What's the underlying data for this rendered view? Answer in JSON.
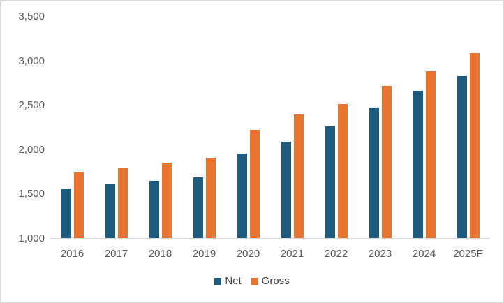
{
  "chart_data": {
    "type": "bar",
    "title": "",
    "xlabel": "",
    "ylabel": "",
    "categories": [
      "2016",
      "2017",
      "2018",
      "2019",
      "2020",
      "2021",
      "2022",
      "2023",
      "2024",
      "2025F"
    ],
    "series": [
      {
        "name": "Net",
        "color": "#1d5c7f",
        "values": [
          1570,
          1610,
          1650,
          1690,
          1960,
          2090,
          2270,
          2480,
          2670,
          2830
        ]
      },
      {
        "name": "Gross",
        "color": "#e8742f",
        "values": [
          1750,
          1800,
          1860,
          1910,
          2230,
          2400,
          2520,
          2720,
          2890,
          3090
        ]
      }
    ],
    "ylim": [
      1000,
      3500
    ],
    "ytick_step": 500,
    "ytick_labels": [
      "1,000",
      "1,500",
      "2,000",
      "2,500",
      "3,000",
      "3,500"
    ],
    "grid": false,
    "legend_position": "bottom",
    "axis_line_color": "#d9d9d9",
    "tick_text_color": "#595959",
    "legend_text_color": "#404040"
  }
}
